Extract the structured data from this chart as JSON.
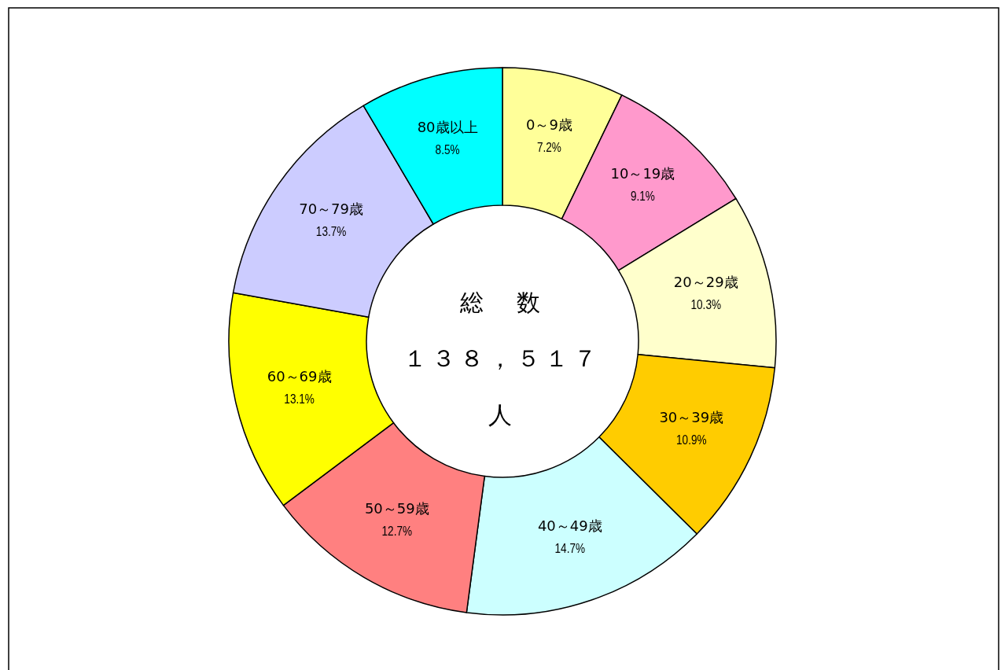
{
  "chart_data": {
    "type": "donut",
    "categories": [
      "0～9歳",
      "10～19歳",
      "20～29歳",
      "30～39歳",
      "40～49歳",
      "50～59歳",
      "60～69歳",
      "70～79歳",
      "80歳以上"
    ],
    "values": [
      7.2,
      9.1,
      10.3,
      10.9,
      14.7,
      12.7,
      13.1,
      13.7,
      8.5
    ],
    "value_labels": [
      "7.2%",
      "9.1%",
      "10.3%",
      "10.9%",
      "14.7%",
      "12.7%",
      "13.1%",
      "13.7%",
      "8.5%"
    ],
    "colors": [
      "#ffff99",
      "#ff99cc",
      "#ffffcc",
      "#ffcc00",
      "#ccffff",
      "#ff8080",
      "#ffff00",
      "#ccccff",
      "#00ffff"
    ],
    "annotations": [
      "総　数",
      "１３８，５１７",
      "人"
    ],
    "legend": false
  }
}
